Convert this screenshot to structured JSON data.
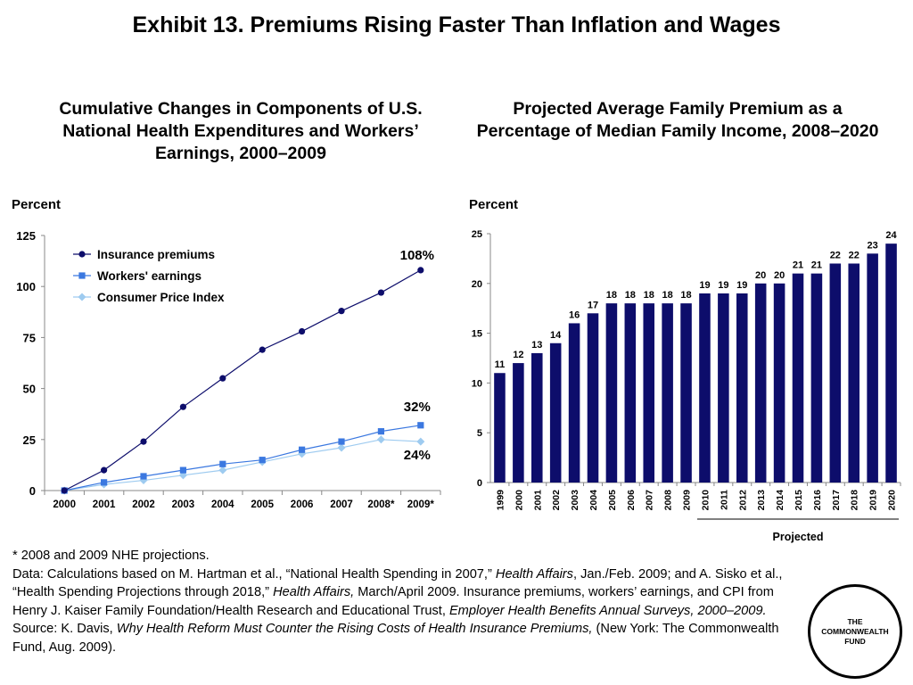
{
  "page": {
    "title": "Exhibit 13. Premiums Rising Faster Than Inflation and Wages",
    "logo_line1": "THE",
    "logo_line2": "COMMONWEALTH",
    "logo_line3": "FUND"
  },
  "notes": {
    "line1": "* 2008 and 2009 NHE projections.",
    "data_prefix": "Data: Calculations based on M. Hartman et al., “National Health Spending in 2007,” ",
    "data_journal1": "Health Affairs",
    "data_mid": ", Jan./Feb. 2009; and A. Sisko et al., “Health Spending Projections through 2018,” ",
    "data_journal2": "Health Affairs,",
    "data_after": " March/April 2009. Insurance premiums, workers’ earnings, and CPI from Henry J. Kaiser Family Foundation/Health Research and Educational Trust, ",
    "data_survey": "Employer Health Benefits Annual Surveys, 2000–2009.",
    "source_prefix": "Source: K. Davis, ",
    "source_title": "Why Health Reform Must Counter the Rising Costs of Health Insurance Premiums,",
    "source_after": " (New York: The Commonwealth Fund, Aug. 2009)."
  },
  "chart_data": [
    {
      "type": "line",
      "title": "Cumulative Changes in Components of U.S. National Health Expenditures and Workers’ Earnings, 2000–2009",
      "ylabel": "Percent",
      "xlabel": "",
      "ylim": [
        0,
        125
      ],
      "yticks": [
        0,
        25,
        50,
        75,
        100,
        125
      ],
      "x": [
        "2000",
        "2001",
        "2002",
        "2003",
        "2004",
        "2005",
        "2006",
        "2007",
        "2008*",
        "2009*"
      ],
      "legend_position": "top-left",
      "series": [
        {
          "name": "Insurance premiums",
          "color": "#0d0d6b",
          "marker": "circle",
          "values": [
            0,
            10,
            24,
            41,
            55,
            69,
            78,
            88,
            97,
            108
          ],
          "end_label": "108%"
        },
        {
          "name": "Workers' earnings",
          "color": "#3b78e0",
          "marker": "square",
          "values": [
            0,
            4,
            7,
            10,
            13,
            15,
            20,
            24,
            29,
            32
          ],
          "end_label": "32%"
        },
        {
          "name": "Consumer Price Index",
          "color": "#9ecbf0",
          "marker": "diamond",
          "values": [
            0,
            3,
            5,
            7.5,
            10,
            14,
            18,
            21,
            25,
            24
          ],
          "end_label": "24%"
        }
      ]
    },
    {
      "type": "bar",
      "title": "Projected Average Family Premium as a Percentage of Median Family Income, 2008–2020",
      "ylabel": "Percent",
      "xlabel": "",
      "ylim": [
        0,
        25
      ],
      "yticks": [
        0,
        5,
        10,
        15,
        20,
        25
      ],
      "categories": [
        "1999",
        "2000",
        "2001",
        "2002",
        "2003",
        "2004",
        "2005",
        "2006",
        "2007",
        "2008",
        "2009",
        "2010",
        "2011",
        "2012",
        "2013",
        "2014",
        "2015",
        "2016",
        "2017",
        "2018",
        "2019",
        "2020"
      ],
      "values": [
        11,
        12,
        13,
        14,
        16,
        17,
        18,
        18,
        18,
        18,
        18,
        19,
        19,
        19,
        20,
        20,
        21,
        21,
        22,
        22,
        23,
        24
      ],
      "bar_color": "#0d0d6b",
      "projected_label": "Projected",
      "projected_from": "2010"
    }
  ]
}
